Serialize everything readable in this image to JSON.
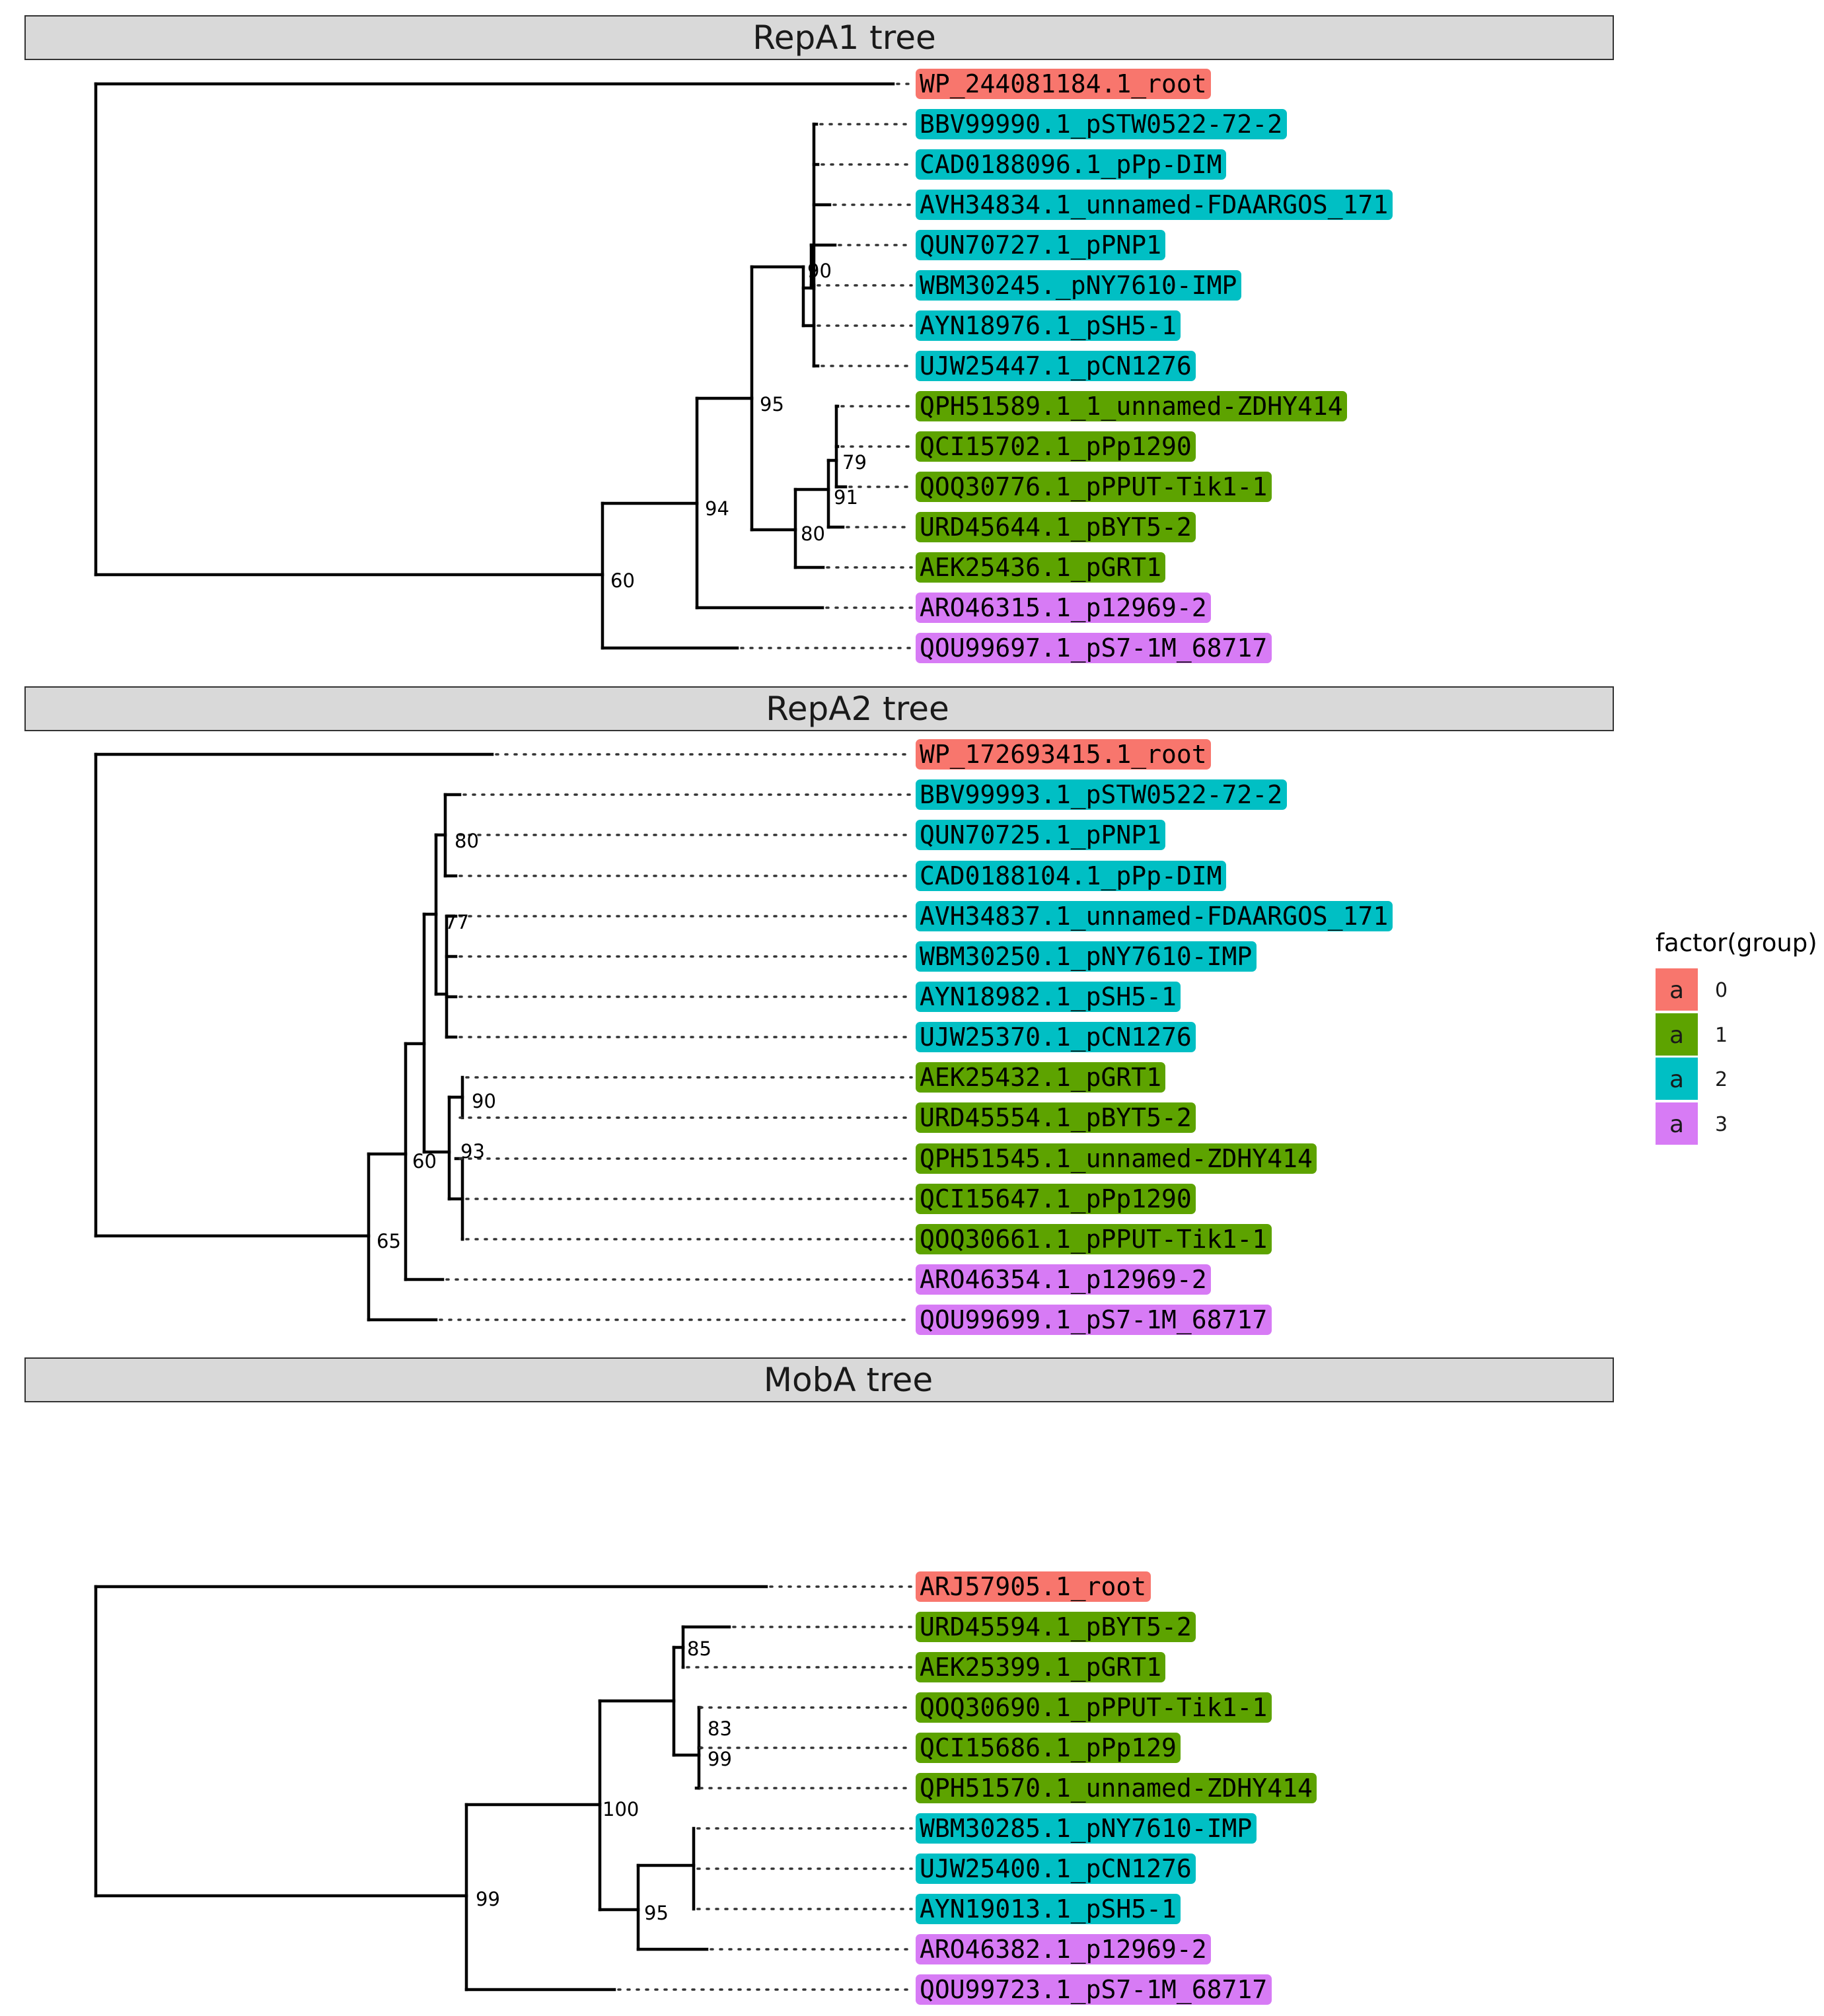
{
  "group_colors": {
    "0": "#F8766D",
    "1": "#5DA300",
    "2": "#00BFC4",
    "3": "#D77BF5"
  },
  "legend": {
    "title": "factor(group)",
    "key_glyph": "a",
    "entries": [
      {
        "group": "0",
        "label": "0"
      },
      {
        "group": "1",
        "label": "1"
      },
      {
        "group": "2",
        "label": "2"
      },
      {
        "group": "3",
        "label": "3"
      }
    ]
  },
  "chart_data": [
    {
      "type": "tree",
      "title": "RepA1 tree",
      "tips": [
        {
          "label": "WP_244081184.1_root",
          "group": "0"
        },
        {
          "label": "BBV99990.1_pSTW0522-72-2",
          "group": "2"
        },
        {
          "label": "CAD0188096.1_pPp-DIM",
          "group": "2"
        },
        {
          "label": "AVH34834.1_unnamed-FDAARGOS_171",
          "group": "2"
        },
        {
          "label": "QUN70727.1_pPNP1",
          "group": "2"
        },
        {
          "label": "WBM30245._pNY7610-IMP",
          "group": "2"
        },
        {
          "label": "AYN18976.1_pSH5-1",
          "group": "2"
        },
        {
          "label": "UJW25447.1_pCN1276",
          "group": "2"
        },
        {
          "label": "QPH51589.1_1_unnamed-ZDHY414",
          "group": "1"
        },
        {
          "label": "QCI15702.1_pPp1290",
          "group": "1"
        },
        {
          "label": "QOQ30776.1_pPPUT-Tik1-1",
          "group": "1"
        },
        {
          "label": "URD45644.1_pBYT5-2",
          "group": "1"
        },
        {
          "label": "AEK25436.1_pGRT1",
          "group": "1"
        },
        {
          "label": "ARO46315.1_p12969-2",
          "group": "3"
        },
        {
          "label": "QOU99697.1_pS7-1M_68717",
          "group": "3"
        }
      ],
      "bootstrap_values": [
        "90",
        "95",
        "79",
        "91",
        "80",
        "94",
        "60"
      ]
    },
    {
      "type": "tree",
      "title": "RepA2 tree",
      "tips": [
        {
          "label": "WP_172693415.1_root",
          "group": "0"
        },
        {
          "label": "BBV99993.1_pSTW0522-72-2",
          "group": "2"
        },
        {
          "label": "QUN70725.1_pPNP1",
          "group": "2"
        },
        {
          "label": "CAD0188104.1_pPp-DIM",
          "group": "2"
        },
        {
          "label": "AVH34837.1_unnamed-FDAARGOS_171",
          "group": "2"
        },
        {
          "label": "WBM30250.1_pNY7610-IMP",
          "group": "2"
        },
        {
          "label": "AYN18982.1_pSH5-1",
          "group": "2"
        },
        {
          "label": "UJW25370.1_pCN1276",
          "group": "2"
        },
        {
          "label": "AEK25432.1_pGRT1",
          "group": "1"
        },
        {
          "label": "URD45554.1_pBYT5-2",
          "group": "1"
        },
        {
          "label": "QPH51545.1_unnamed-ZDHY414",
          "group": "1"
        },
        {
          "label": "QCI15647.1_pPp1290",
          "group": "1"
        },
        {
          "label": "QOQ30661.1_pPPUT-Tik1-1",
          "group": "1"
        },
        {
          "label": "ARO46354.1_p12969-2",
          "group": "3"
        },
        {
          "label": "QOU99699.1_pS7-1M_68717",
          "group": "3"
        }
      ],
      "bootstrap_values": [
        "80",
        "77",
        "90",
        "93",
        "60",
        "65"
      ]
    },
    {
      "type": "tree",
      "title": "MobA tree",
      "tips": [
        {
          "label": "ARJ57905.1_root",
          "group": "0"
        },
        {
          "label": "URD45594.1_pBYT5-2",
          "group": "1"
        },
        {
          "label": "AEK25399.1_pGRT1",
          "group": "1"
        },
        {
          "label": "QOQ30690.1_pPPUT-Tik1-1",
          "group": "1"
        },
        {
          "label": "QCI15686.1_pPp129",
          "group": "1"
        },
        {
          "label": "QPH51570.1_unnamed-ZDHY414",
          "group": "1"
        },
        {
          "label": "WBM30285.1_pNY7610-IMP",
          "group": "2"
        },
        {
          "label": "UJW25400.1_pCN1276",
          "group": "2"
        },
        {
          "label": "AYN19013.1_pSH5-1",
          "group": "2"
        },
        {
          "label": "ARO46382.1_p12969-2",
          "group": "3"
        },
        {
          "label": "QOU99723.1_pS7-1M_68717",
          "group": "3"
        }
      ],
      "bootstrap_values": [
        "85",
        "83",
        "99",
        "100",
        "95",
        "99"
      ]
    }
  ]
}
